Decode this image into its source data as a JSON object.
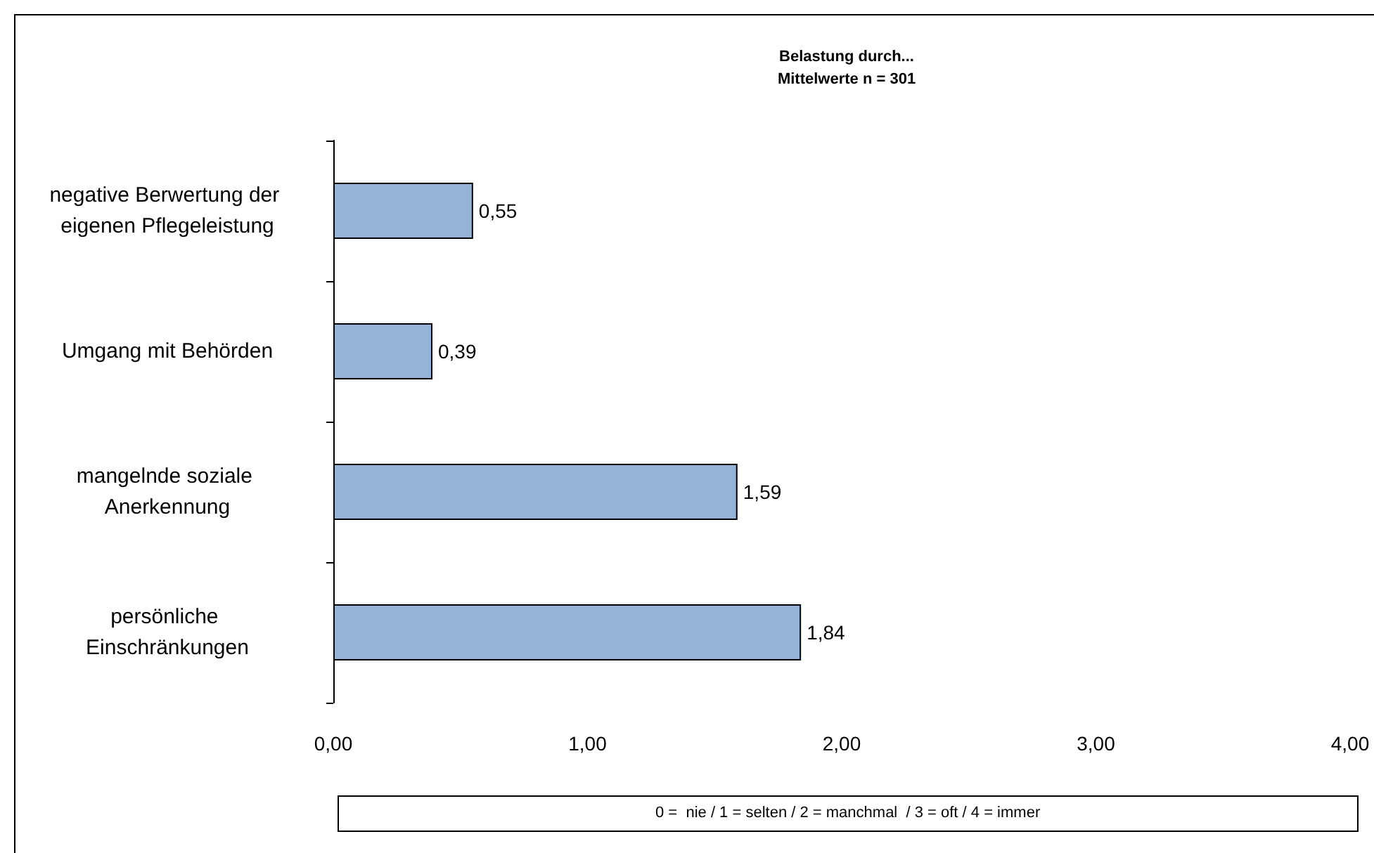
{
  "chart_data": {
    "type": "bar",
    "orientation": "horizontal",
    "title": "Belastung durch...",
    "subtitle": "Mittelwerte n = 301",
    "categories": [
      "negative Berwertung der eigenen Pflegeleistung",
      "Umgang mit Behörden",
      "mangelnde soziale Anerkennung",
      "persönliche Einschränkungen"
    ],
    "values": [
      0.55,
      0.39,
      1.59,
      1.84
    ],
    "value_labels": [
      "0,55",
      "0,39",
      "1,59",
      "1,84"
    ],
    "color": "#95b3d7",
    "xlim": [
      0,
      4
    ],
    "xticks": [
      {
        "value": 0,
        "label": "0,00"
      },
      {
        "value": 1,
        "label": "1,00"
      },
      {
        "value": 2,
        "label": "2,00"
      },
      {
        "value": 3,
        "label": "3,00"
      },
      {
        "value": 4,
        "label": "4,00"
      }
    ],
    "grid": false,
    "annotations": [
      "0 =  nie / 1 = selten / 2 = manchmal  / 3 = oft / 4 = immer"
    ]
  }
}
